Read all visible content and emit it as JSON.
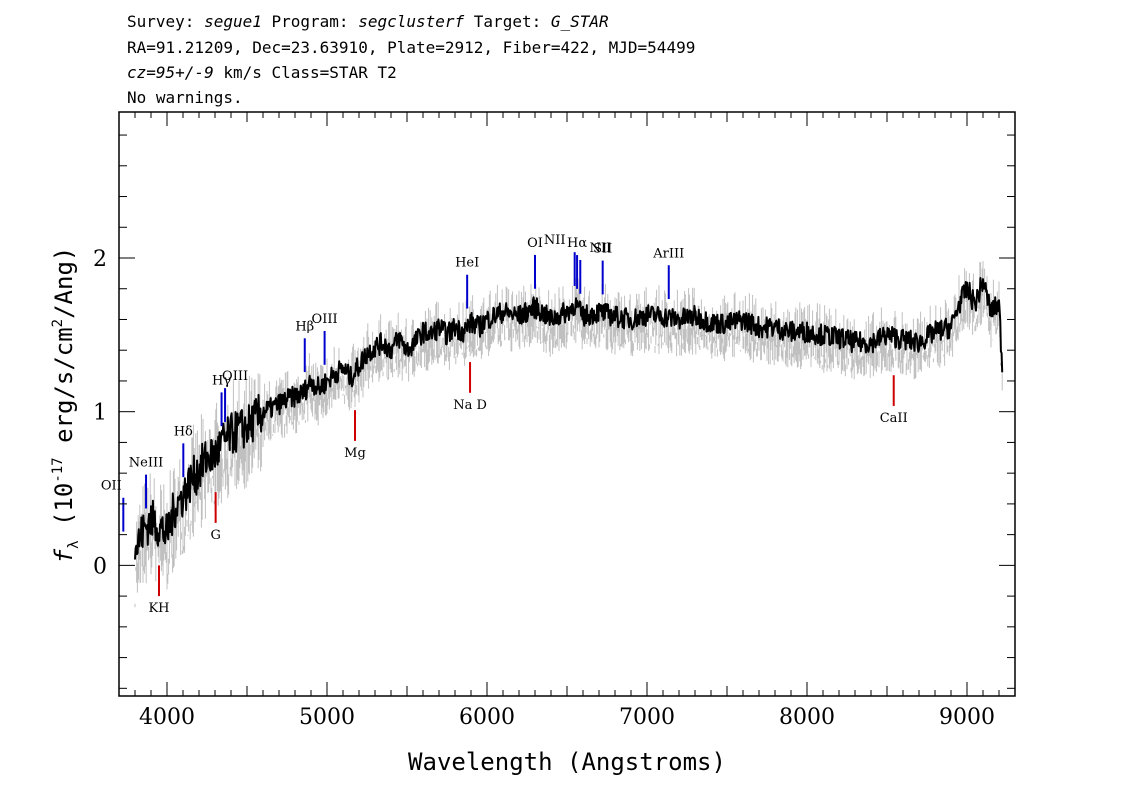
{
  "header": {
    "line1": {
      "survey_label": "Survey: ",
      "survey": "segue1",
      "program_label": " Program: ",
      "program": "segclusterf",
      "target_label": " Target: ",
      "target": "G_STAR"
    },
    "line2": "RA=91.21209, Dec=23.63910, Plate=2912, Fiber=422, MJD=54499",
    "line3": {
      "cz": "cz=95+/-9",
      "rest": " km/s Class=STAR T2"
    },
    "line4": "No warnings."
  },
  "chart_data": {
    "type": "line",
    "title": "",
    "xlabel": "Wavelength (Angstroms)",
    "ylabel_main": "f",
    "ylabel_sub": "λ",
    "ylabel_rest": " (10",
    "ylabel_exp1": "-17",
    "ylabel_mid": " erg/s/cm",
    "ylabel_exp2": "2",
    "ylabel_end": "/Ang)",
    "xlim": [
      3700,
      9300
    ],
    "ylim": [
      -0.85,
      2.95
    ],
    "xticks": [
      4000,
      5000,
      6000,
      7000,
      8000,
      9000
    ],
    "xtick_labels": [
      "4000",
      "5000",
      "6000",
      "7000",
      "8000",
      "9000"
    ],
    "yticks": [
      0,
      1,
      2
    ],
    "ytick_labels": [
      "0",
      "1",
      "2"
    ],
    "grid": false,
    "colors": {
      "flux": "#000000",
      "error_band": "#c0c0c0",
      "emission": "#0000cc",
      "absorption": "#cc0000"
    },
    "series": [
      {
        "x": [
          3800,
          3850,
          3900,
          3950,
          4000,
          4050,
          4100,
          4150,
          4200,
          4250,
          4300,
          4350,
          4400,
          4450,
          4500,
          4550,
          4600,
          4650,
          4700,
          4750,
          4800,
          4850,
          4900,
          4950,
          5000,
          5050,
          5100,
          5150,
          5200,
          5250,
          5300,
          5350,
          5400,
          5450,
          5500,
          5550,
          5600,
          5650,
          5700,
          5750,
          5800,
          5850,
          5900,
          5950,
          6000,
          6100,
          6200,
          6300,
          6400,
          6500,
          6550,
          6600,
          6700,
          6800,
          6900,
          7000,
          7100,
          7200,
          7300,
          7400,
          7500,
          7600,
          7700,
          7800,
          7900,
          8000,
          8100,
          8200,
          8300,
          8400,
          8500,
          8600,
          8700,
          8800,
          8900,
          8950,
          9000,
          9050,
          9100,
          9150,
          9200,
          9220
        ],
        "values": [
          0.1,
          0.22,
          0.3,
          0.25,
          0.2,
          0.38,
          0.45,
          0.55,
          0.62,
          0.7,
          0.72,
          0.8,
          0.85,
          0.88,
          0.9,
          0.95,
          1.0,
          1.02,
          1.05,
          1.08,
          1.1,
          1.12,
          1.2,
          1.15,
          1.2,
          1.25,
          1.28,
          1.22,
          1.3,
          1.38,
          1.42,
          1.45,
          1.4,
          1.48,
          1.4,
          1.45,
          1.52,
          1.5,
          1.55,
          1.5,
          1.55,
          1.52,
          1.58,
          1.55,
          1.6,
          1.65,
          1.62,
          1.68,
          1.6,
          1.65,
          1.7,
          1.62,
          1.65,
          1.62,
          1.6,
          1.63,
          1.62,
          1.6,
          1.62,
          1.58,
          1.57,
          1.6,
          1.55,
          1.55,
          1.52,
          1.52,
          1.5,
          1.48,
          1.45,
          1.45,
          1.5,
          1.47,
          1.45,
          1.52,
          1.55,
          1.7,
          1.8,
          1.7,
          1.85,
          1.65,
          1.7,
          1.3
        ]
      }
    ],
    "emission_lines": [
      {
        "label": "OII",
        "wavelength": 3727,
        "label_offset": -12
      },
      {
        "label": "NeIII",
        "wavelength": 3869,
        "label_offset": 0
      },
      {
        "label": "Hδ",
        "wavelength": 4102,
        "label_offset": 0
      },
      {
        "label": "Hγ",
        "wavelength": 4341,
        "label_offset": 0
      },
      {
        "label": "OIII",
        "wavelength": 4363,
        "label_offset": 10
      },
      {
        "label": "Hβ",
        "wavelength": 4861,
        "label_offset": 0
      },
      {
        "label": "OIII",
        "wavelength": 4985,
        "label_offset": 0
      },
      {
        "label": "HeI",
        "wavelength": 5876,
        "label_offset": 0
      },
      {
        "label": "OI",
        "wavelength": 6300,
        "label_offset": 0
      },
      {
        "label": "Hα",
        "wavelength": 6563,
        "label_offset": 0
      },
      {
        "label": "NII",
        "wavelength": 6548,
        "label_offset": -20
      },
      {
        "label": "NII",
        "wavelength": 6583,
        "label_offset": 20
      },
      {
        "label": "SII",
        "wavelength": 6723,
        "label_offset": 0
      },
      {
        "label": "ArIII",
        "wavelength": 7136,
        "label_offset": 0
      }
    ],
    "absorption_lines": [
      {
        "label": "KH",
        "wavelength": 3950
      },
      {
        "label": "G",
        "wavelength": 4304
      },
      {
        "label": "Mg",
        "wavelength": 5175
      },
      {
        "label": "Na D",
        "wavelength": 5894
      },
      {
        "label": "CaII",
        "wavelength": 8542
      }
    ]
  }
}
